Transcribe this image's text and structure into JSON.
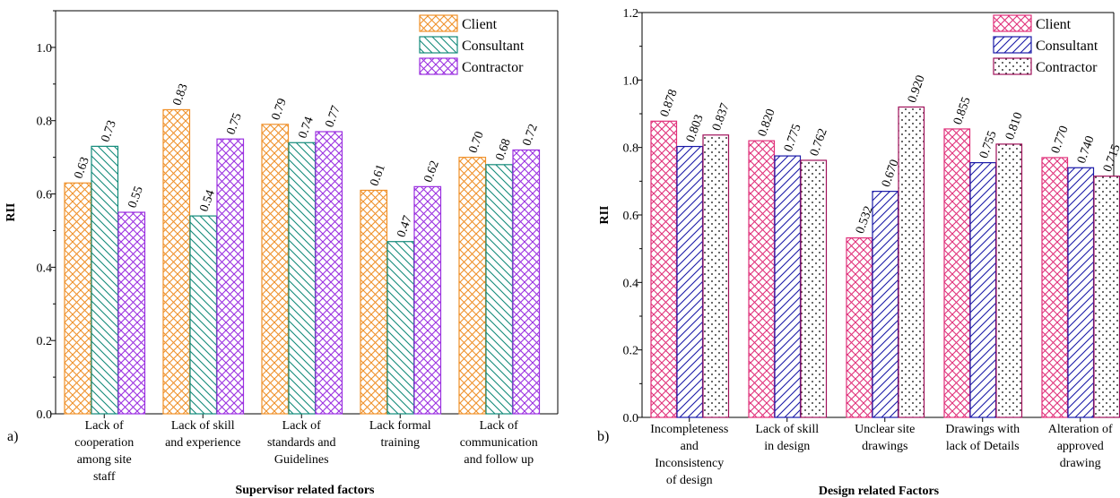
{
  "chart_data": [
    {
      "type": "bar",
      "panel_label": "a)",
      "xlabel": "Supervisor related factors",
      "ylabel": "RII",
      "ylim": [
        0,
        1.1
      ],
      "yticks": [
        "0.0",
        "0.2",
        "0.4",
        "0.6",
        "0.8",
        "1.0"
      ],
      "categories": [
        [
          "Lack of",
          "cooperation",
          "among site",
          "staff"
        ],
        [
          "Lack of skill",
          "and experience"
        ],
        [
          "Lack of",
          "standards and",
          "Guidelines"
        ],
        [
          "Lack formal",
          "training"
        ],
        [
          "Lack of",
          "communication",
          "and follow up"
        ]
      ],
      "series": [
        {
          "name": "Client",
          "values": [
            0.63,
            0.83,
            0.79,
            0.61,
            0.7
          ],
          "labels": [
            "0.63",
            "0.83",
            "0.79",
            "0.61",
            "0.70"
          ],
          "color": "#f0912a",
          "pattern": "crosshatch"
        },
        {
          "name": "Consultant",
          "values": [
            0.73,
            0.54,
            0.74,
            0.47,
            0.68
          ],
          "labels": [
            "0.73",
            "0.54",
            "0.74",
            "0.47",
            "0.68"
          ],
          "color": "#138a7a",
          "pattern": "diagonal-down"
        },
        {
          "name": "Contractor",
          "values": [
            0.55,
            0.75,
            0.77,
            0.62,
            0.72
          ],
          "labels": [
            "0.55",
            "0.75",
            "0.77",
            "0.62",
            "0.72"
          ],
          "color": "#9b30e0",
          "pattern": "diagonal-cross"
        }
      ],
      "legend_position": "top-right",
      "grid": false
    },
    {
      "type": "bar",
      "panel_label": "b)",
      "xlabel": "Design related Factors",
      "ylabel": "RII",
      "ylim": [
        0,
        1.2
      ],
      "yticks": [
        "0.0",
        "0.2",
        "0.4",
        "0.6",
        "0.8",
        "1.0",
        "1.2"
      ],
      "categories": [
        [
          "Incompleteness",
          "and",
          "Inconsistency",
          "of design"
        ],
        [
          "Lack of skill",
          "in design"
        ],
        [
          "Unclear site",
          "drawings"
        ],
        [
          "Drawings with",
          "lack of Details"
        ],
        [
          "Alteration of",
          "approved",
          "drawing"
        ]
      ],
      "series": [
        {
          "name": "Client",
          "values": [
            0.878,
            0.82,
            0.532,
            0.855,
            0.77
          ],
          "labels": [
            "0.878",
            "0.820",
            "0.532",
            "0.855",
            "0.770"
          ],
          "color": "#e0307a",
          "pattern": "crosshatch"
        },
        {
          "name": "Consultant",
          "values": [
            0.803,
            0.775,
            0.67,
            0.755,
            0.74
          ],
          "labels": [
            "0.803",
            "0.775",
            "0.670",
            "0.755",
            "0.740"
          ],
          "color": "#1a1aa8",
          "pattern": "diagonal-up"
        },
        {
          "name": "Contractor",
          "values": [
            0.837,
            0.762,
            0.92,
            0.81,
            0.715
          ],
          "labels": [
            "0.837",
            "0.762",
            "0.920",
            "0.810",
            "0.715"
          ],
          "color": "#a0105a",
          "pattern": "dots"
        }
      ],
      "legend_position": "top-right",
      "grid": false
    }
  ]
}
